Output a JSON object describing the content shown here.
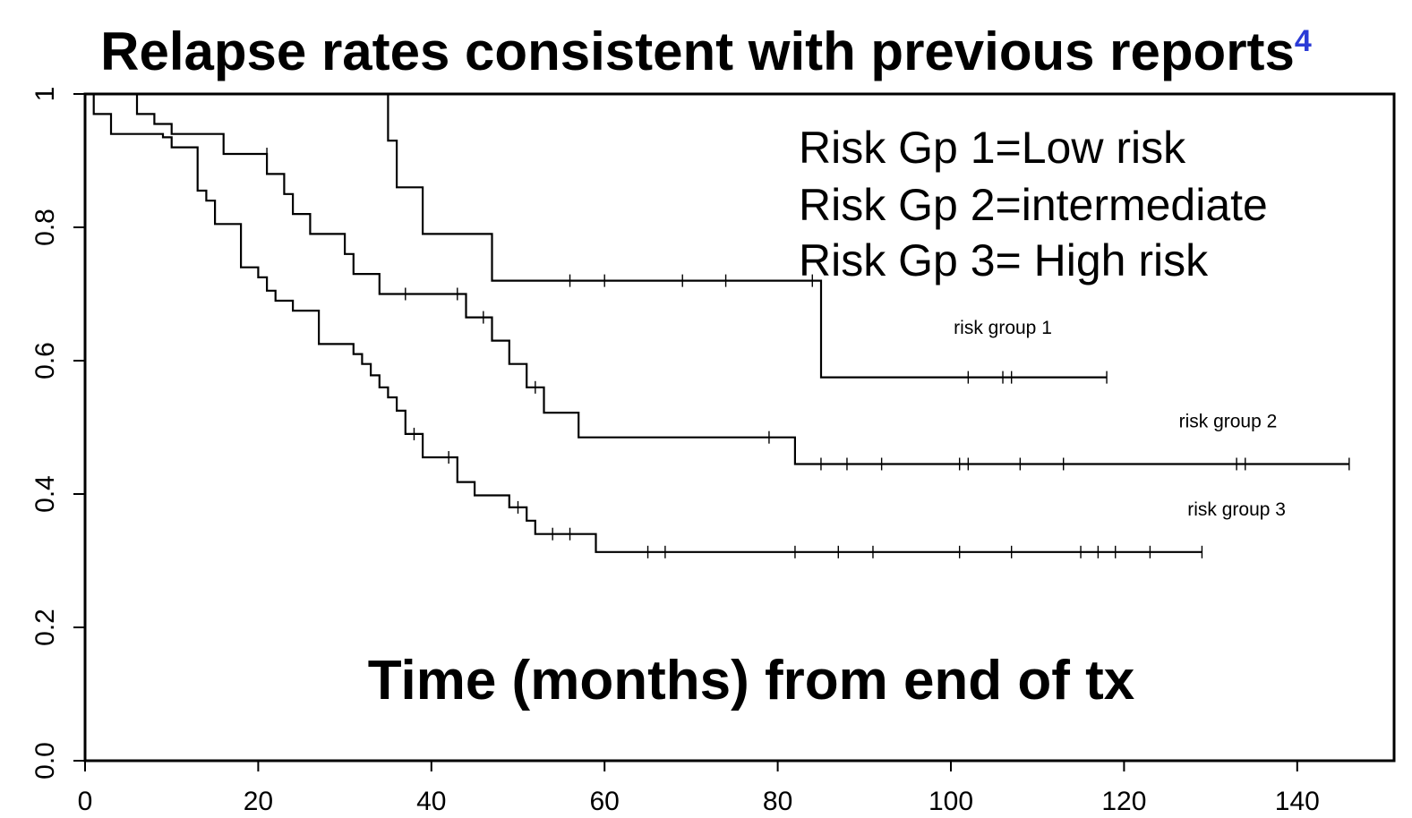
{
  "chart_data": {
    "type": "line",
    "title": "Relapse rates consistent with previous reports",
    "title_footnote": "4",
    "xlabel": "Time (months) from end of tx",
    "ylabel": "",
    "xlim": [
      0,
      150
    ],
    "ylim": [
      0,
      1
    ],
    "xticks": [
      0,
      20,
      40,
      60,
      80,
      100,
      120,
      140
    ],
    "yticks": [
      0.0,
      0.2,
      0.4,
      0.6,
      0.8,
      1
    ],
    "ytick_labels": [
      "0.0",
      "0.2",
      "0.4",
      "0.6",
      "0.8",
      "1"
    ],
    "grid": false,
    "legend_text": [
      "Risk Gp 1=Low risk",
      "Risk Gp 2=intermediate",
      "Risk Gp 3= High risk"
    ],
    "series": [
      {
        "name": "risk group 1",
        "label_position": [
          106,
          0.64
        ],
        "steps": [
          [
            0,
            1
          ],
          [
            35,
            1
          ],
          [
            35,
            0.93
          ],
          [
            36,
            0.93
          ],
          [
            36,
            0.86
          ],
          [
            39,
            0.86
          ],
          [
            39,
            0.79
          ],
          [
            47,
            0.79
          ],
          [
            47,
            0.72
          ],
          [
            85,
            0.72
          ],
          [
            85,
            0.575
          ],
          [
            118,
            0.575
          ]
        ],
        "censored": [
          [
            56,
            0.72
          ],
          [
            60,
            0.72
          ],
          [
            69,
            0.72
          ],
          [
            74,
            0.72
          ],
          [
            84,
            0.72
          ],
          [
            102,
            0.575
          ],
          [
            106,
            0.575
          ],
          [
            107,
            0.575
          ],
          [
            118,
            0.575
          ]
        ]
      },
      {
        "name": "risk group 2",
        "label_position": [
          132,
          0.5
        ],
        "steps": [
          [
            0,
            1
          ],
          [
            6,
            1
          ],
          [
            6,
            0.97
          ],
          [
            8,
            0.97
          ],
          [
            8,
            0.955
          ],
          [
            10,
            0.955
          ],
          [
            10,
            0.94
          ],
          [
            16,
            0.94
          ],
          [
            16,
            0.91
          ],
          [
            21,
            0.91
          ],
          [
            21,
            0.88
          ],
          [
            23,
            0.88
          ],
          [
            23,
            0.85
          ],
          [
            24,
            0.85
          ],
          [
            24,
            0.82
          ],
          [
            26,
            0.82
          ],
          [
            26,
            0.79
          ],
          [
            30,
            0.79
          ],
          [
            30,
            0.76
          ],
          [
            31,
            0.76
          ],
          [
            31,
            0.73
          ],
          [
            34,
            0.73
          ],
          [
            34,
            0.7
          ],
          [
            44,
            0.7
          ],
          [
            44,
            0.665
          ],
          [
            47,
            0.665
          ],
          [
            47,
            0.63
          ],
          [
            49,
            0.63
          ],
          [
            49,
            0.595
          ],
          [
            51,
            0.595
          ],
          [
            51,
            0.56
          ],
          [
            53,
            0.56
          ],
          [
            53,
            0.522
          ],
          [
            57,
            0.522
          ],
          [
            57,
            0.485
          ],
          [
            82,
            0.485
          ],
          [
            82,
            0.445
          ],
          [
            146,
            0.445
          ]
        ],
        "censored": [
          [
            21,
            0.91
          ],
          [
            37,
            0.7
          ],
          [
            43,
            0.7
          ],
          [
            46,
            0.665
          ],
          [
            52,
            0.56
          ],
          [
            79,
            0.485
          ],
          [
            85,
            0.445
          ],
          [
            88,
            0.445
          ],
          [
            92,
            0.445
          ],
          [
            101,
            0.445
          ],
          [
            102,
            0.445
          ],
          [
            108,
            0.445
          ],
          [
            113,
            0.445
          ],
          [
            133,
            0.445
          ],
          [
            134,
            0.445
          ],
          [
            146,
            0.445
          ]
        ]
      },
      {
        "name": "risk group 3",
        "label_position": [
          133,
          0.368
        ],
        "steps": [
          [
            0,
            1
          ],
          [
            1,
            1
          ],
          [
            1,
            0.97
          ],
          [
            3,
            0.97
          ],
          [
            3,
            0.94
          ],
          [
            9,
            0.94
          ],
          [
            9,
            0.935
          ],
          [
            10,
            0.935
          ],
          [
            10,
            0.92
          ],
          [
            13,
            0.92
          ],
          [
            13,
            0.855
          ],
          [
            14,
            0.855
          ],
          [
            14,
            0.84
          ],
          [
            15,
            0.84
          ],
          [
            15,
            0.805
          ],
          [
            18,
            0.805
          ],
          [
            18,
            0.74
          ],
          [
            20,
            0.74
          ],
          [
            20,
            0.725
          ],
          [
            21,
            0.725
          ],
          [
            21,
            0.705
          ],
          [
            22,
            0.705
          ],
          [
            22,
            0.69
          ],
          [
            24,
            0.69
          ],
          [
            24,
            0.675
          ],
          [
            27,
            0.675
          ],
          [
            27,
            0.625
          ],
          [
            31,
            0.625
          ],
          [
            31,
            0.61
          ],
          [
            32,
            0.61
          ],
          [
            32,
            0.595
          ],
          [
            33,
            0.595
          ],
          [
            33,
            0.578
          ],
          [
            34,
            0.578
          ],
          [
            34,
            0.56
          ],
          [
            35,
            0.56
          ],
          [
            35,
            0.545
          ],
          [
            36,
            0.545
          ],
          [
            36,
            0.525
          ],
          [
            37,
            0.525
          ],
          [
            37,
            0.49
          ],
          [
            39,
            0.49
          ],
          [
            39,
            0.455
          ],
          [
            43,
            0.455
          ],
          [
            43,
            0.418
          ],
          [
            45,
            0.418
          ],
          [
            45,
            0.398
          ],
          [
            49,
            0.398
          ],
          [
            49,
            0.38
          ],
          [
            51,
            0.38
          ],
          [
            51,
            0.36
          ],
          [
            52,
            0.36
          ],
          [
            52,
            0.34
          ],
          [
            59,
            0.34
          ],
          [
            59,
            0.313
          ],
          [
            129,
            0.313
          ]
        ],
        "censored": [
          [
            38,
            0.49
          ],
          [
            42,
            0.455
          ],
          [
            50,
            0.38
          ],
          [
            54,
            0.34
          ],
          [
            56,
            0.34
          ],
          [
            65,
            0.313
          ],
          [
            67,
            0.313
          ],
          [
            82,
            0.313
          ],
          [
            87,
            0.313
          ],
          [
            91,
            0.313
          ],
          [
            101,
            0.313
          ],
          [
            107,
            0.313
          ],
          [
            115,
            0.313
          ],
          [
            117,
            0.313
          ],
          [
            119,
            0.313
          ],
          [
            123,
            0.313
          ],
          [
            129,
            0.313
          ]
        ]
      }
    ]
  }
}
